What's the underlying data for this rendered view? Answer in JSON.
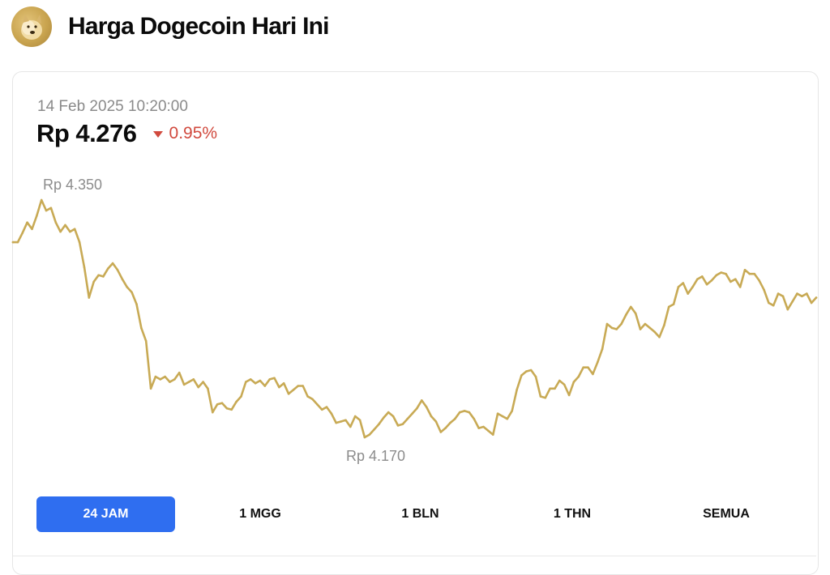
{
  "header": {
    "title": "Harga Dogecoin Hari Ini",
    "logo_icon": "dogecoin-logo-icon"
  },
  "price_panel": {
    "timestamp": "14 Feb 2025 10:20:00",
    "price": "Rp 4.276",
    "change": "0.95%",
    "change_direction": "down",
    "change_color": "#d14a3e"
  },
  "chart_data": {
    "type": "line",
    "title": "",
    "xlabel": "",
    "ylabel": "",
    "ylim": [
      4170,
      4350
    ],
    "grid": false,
    "line_color": "#c8aa55",
    "high_label": "Rp 4.350",
    "low_label": "Rp 4.170",
    "values": [
      4318,
      4318,
      4325,
      4333,
      4328,
      4338,
      4350,
      4342,
      4344,
      4333,
      4326,
      4331,
      4326,
      4328,
      4318,
      4299,
      4276,
      4288,
      4293,
      4292,
      4298,
      4302,
      4297,
      4290,
      4284,
      4280,
      4271,
      4253,
      4243,
      4207,
      4216,
      4214,
      4216,
      4212,
      4214,
      4219,
      4210,
      4212,
      4214,
      4208,
      4212,
      4207,
      4189,
      4195,
      4196,
      4192,
      4191,
      4197,
      4201,
      4212,
      4214,
      4211,
      4213,
      4209,
      4214,
      4215,
      4208,
      4211,
      4203,
      4206,
      4209,
      4209,
      4201,
      4199,
      4195,
      4191,
      4193,
      4188,
      4181,
      4182,
      4183,
      4178,
      4186,
      4183,
      4170,
      4172,
      4176,
      4180,
      4185,
      4189,
      4186,
      4179,
      4180,
      4184,
      4188,
      4192,
      4198,
      4193,
      4186,
      4182,
      4174,
      4177,
      4181,
      4184,
      4189,
      4190,
      4189,
      4184,
      4177,
      4178,
      4175,
      4172,
      4188,
      4186,
      4184,
      4190,
      4206,
      4217,
      4220,
      4221,
      4216,
      4201,
      4200,
      4207,
      4207,
      4213,
      4210,
      4202,
      4212,
      4216,
      4223,
      4223,
      4218,
      4227,
      4237,
      4256,
      4253,
      4252,
      4256,
      4263,
      4269,
      4264,
      4252,
      4256,
      4253,
      4250,
      4246,
      4255,
      4269,
      4271,
      4284,
      4287,
      4279,
      4284,
      4290,
      4292,
      4286,
      4289,
      4293,
      4295,
      4294,
      4288,
      4290,
      4284,
      4297,
      4294,
      4294,
      4289,
      4282,
      4272,
      4270,
      4279,
      4277,
      4267,
      4273,
      4279,
      4277,
      4279,
      4272,
      4276
    ]
  },
  "timeframes": {
    "items": [
      "24 JAM",
      "1 MGG",
      "1 BLN",
      "1 THN",
      "SEMUA"
    ],
    "active_index": 0,
    "active_color": "#2f6ef0"
  }
}
